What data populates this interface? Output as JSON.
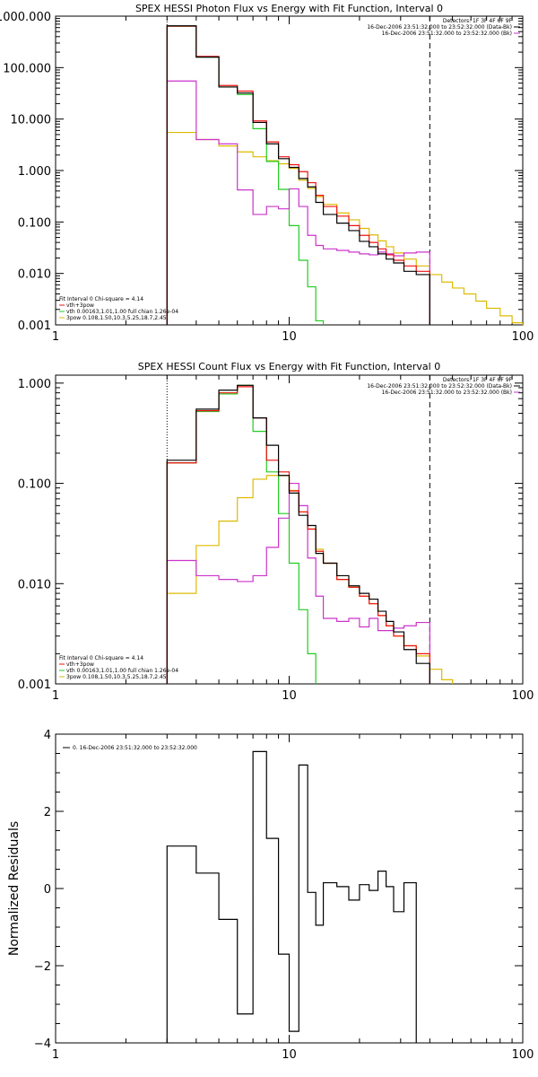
{
  "chart_data": [
    {
      "type": "line",
      "title": "SPEX HESSI Photon Flux vs Energy with Fit Function, Interval 0",
      "xscale": "log",
      "yscale": "log",
      "xlim": [
        1,
        100
      ],
      "ylim": [
        0.001,
        1000
      ],
      "x_ticks": [
        1,
        10,
        100
      ],
      "x_tick_labels": [
        "1",
        "10",
        "100"
      ],
      "y_ticks": [
        0.001,
        0.01,
        0.1,
        1,
        10,
        100,
        1000
      ],
      "y_tick_labels": [
        "0.001",
        "0.010",
        "0.100",
        "1.000",
        "10.000",
        "100.000",
        "1000.000"
      ],
      "vlines": [
        {
          "x": 3,
          "style": "dotted"
        },
        {
          "x": 40,
          "style": "dashed"
        }
      ],
      "legend_top_right": [
        {
          "text": "Detectors: 1F 3F 4F 6F 9F",
          "color": null
        },
        {
          "text": "16-Dec-2006 23:51:32.000 to 23:52:32.000 (Data-Bk)",
          "color": "#000000"
        },
        {
          "text": "16-Dec-2006 23:51:32.000 to 23:52:32.000 (Bk)",
          "color": "#cc33cc"
        }
      ],
      "legend_bottom_left": [
        {
          "text": "Fit Interval 0   Chi-square = 4.14",
          "color": null
        },
        {
          "text": "vth+3pow",
          "color": "#ee1111"
        },
        {
          "text": "vth 0.00163,1.01,1.00  full chian 1.26e-04",
          "color": "#22cc22"
        },
        {
          "text": "3pow 0.108,1.50,10.3,5.25,18.7,2.45",
          "color": "#ddbb00"
        }
      ],
      "edges": [
        3.0,
        4.0,
        5.0,
        6.0,
        7.0,
        8.0,
        9.0,
        10.0,
        11.0,
        12.0,
        13.0,
        14.0,
        16.0,
        18.0,
        20.0,
        22.0,
        24.0,
        26.0,
        28.0,
        31.0,
        35.0,
        40.0,
        45.0,
        50.0,
        56.0,
        63.0,
        70.0,
        80.0,
        90.0,
        100.0
      ],
      "series": [
        {
          "name": "16-Dec-2006 23:51:32.000 to 23:52:32.000 (Data-Bk)",
          "color": "#000000",
          "values": [
            650,
            160,
            42,
            32,
            8.6,
            3.3,
            1.7,
            1.15,
            0.7,
            0.48,
            0.24,
            0.14,
            0.095,
            0.068,
            0.042,
            0.033,
            0.024,
            0.019,
            0.016,
            0.011,
            0.0095
          ]
        },
        {
          "name": "16-Dec-2006 23:51:32.000 to 23:52:32.000 (Bk)",
          "color": "#cc33cc",
          "values": [
            55,
            4.0,
            3.3,
            0.42,
            0.14,
            0.2,
            0.18,
            0.44,
            0.2,
            0.055,
            0.035,
            0.03,
            0.028,
            0.026,
            0.024,
            0.023,
            0.026,
            0.024,
            0.022,
            0.025,
            0.026
          ]
        },
        {
          "name": "vth+3pow",
          "color": "#ee1111",
          "values": [
            640,
            165,
            45,
            35,
            9.2,
            3.6,
            1.85,
            1.3,
            0.95,
            0.58,
            0.33,
            0.2,
            0.13,
            0.085,
            0.055,
            0.04,
            0.03,
            0.023,
            0.018,
            0.014,
            0.011
          ]
        },
        {
          "name": "vth",
          "color": "#22cc22",
          "values": [
            640,
            160,
            42,
            30,
            6.5,
            1.5,
            0.43,
            0.085,
            0.018,
            0.0055,
            0.0012
          ]
        },
        {
          "name": "3pow",
          "color": "#ddbb00",
          "values": [
            5.5,
            4.0,
            3.0,
            2.3,
            1.85,
            1.55,
            1.35,
            1.1,
            0.65,
            0.45,
            0.31,
            0.22,
            0.15,
            0.11,
            0.075,
            0.056,
            0.043,
            0.033,
            0.025,
            0.019,
            0.014,
            0.0095,
            0.0068,
            0.0052,
            0.004,
            0.0029,
            0.0021,
            0.0015,
            0.0011
          ]
        }
      ]
    },
    {
      "type": "line",
      "title": "SPEX HESSI Count Flux vs Energy with Fit Function, Interval 0",
      "xscale": "log",
      "yscale": "log",
      "xlim": [
        1,
        100
      ],
      "ylim": [
        0.001,
        1.2
      ],
      "x_ticks": [
        1,
        10,
        100
      ],
      "x_tick_labels": [
        "1",
        "10",
        "100"
      ],
      "y_ticks": [
        0.001,
        0.01,
        0.1,
        1
      ],
      "y_tick_labels": [
        "0.001",
        "0.010",
        "0.100",
        "1.000"
      ],
      "vlines": [
        {
          "x": 3,
          "style": "dotted"
        },
        {
          "x": 40,
          "style": "dashed"
        }
      ],
      "legend_top_right": [
        {
          "text": "Detectors: 1F 3F 4F 6F 9F",
          "color": null
        },
        {
          "text": "16-Dec-2006 23:51:32.000 to 23:52:32.000 (Data-Bk)",
          "color": "#000000"
        },
        {
          "text": "16-Dec-2006 23:51:32.000 to 23:52:32.000 (Bk)",
          "color": "#cc33cc"
        }
      ],
      "legend_bottom_left": [
        {
          "text": "Fit Interval 0   Chi-square = 4.14",
          "color": null
        },
        {
          "text": "vth+3pow",
          "color": "#ee1111"
        },
        {
          "text": "vth 0.00163,1.01,1.00  full chian 1.26e-04",
          "color": "#22cc22"
        },
        {
          "text": "3pow 0.108,1.50,10.3,5.25,18.7,2.45",
          "color": "#ddbb00"
        }
      ],
      "edges": [
        3.0,
        4.0,
        5.0,
        6.0,
        7.0,
        8.0,
        9.0,
        10.0,
        11.0,
        12.0,
        13.0,
        14.0,
        16.0,
        18.0,
        20.0,
        22.0,
        24.0,
        26.0,
        28.0,
        31.0,
        35.0,
        40.0,
        45.0,
        50.0
      ],
      "series": [
        {
          "name": "16-Dec-2006 23:51:32.000 to 23:52:32.000 (Data-Bk)",
          "color": "#000000",
          "values": [
            0.17,
            0.55,
            0.85,
            0.95,
            0.45,
            0.24,
            0.12,
            0.08,
            0.048,
            0.038,
            0.02,
            0.016,
            0.012,
            0.0095,
            0.008,
            0.007,
            0.0053,
            0.0042,
            0.0033,
            0.0022,
            0.0016
          ]
        },
        {
          "name": "16-Dec-2006 23:51:32.000 to 23:52:32.000 (Bk)",
          "color": "#cc33cc",
          "values": [
            0.017,
            0.012,
            0.011,
            0.0105,
            0.012,
            0.023,
            0.045,
            0.1,
            0.06,
            0.018,
            0.0075,
            0.0045,
            0.0042,
            0.0045,
            0.0037,
            0.0045,
            0.0034,
            0.0034,
            0.0036,
            0.0038,
            0.0041
          ]
        },
        {
          "name": "vth+3pow",
          "color": "#ee1111",
          "values": [
            0.16,
            0.53,
            0.8,
            0.92,
            0.45,
            0.17,
            0.13,
            0.084,
            0.052,
            0.035,
            0.021,
            0.016,
            0.011,
            0.0092,
            0.0075,
            0.0063,
            0.0048,
            0.0038,
            0.003,
            0.0024,
            0.002
          ]
        },
        {
          "name": "vth",
          "color": "#22cc22",
          "values": [
            0.16,
            0.52,
            0.78,
            0.95,
            0.33,
            0.13,
            0.05,
            0.016,
            0.0055,
            0.002,
            0.0007
          ]
        },
        {
          "name": "3pow",
          "color": "#ddbb00",
          "values": [
            0.008,
            0.024,
            0.042,
            0.072,
            0.11,
            0.12,
            0.12,
            0.085,
            0.052,
            0.035,
            0.022,
            0.016,
            0.011,
            0.0092,
            0.0075,
            0.0063,
            0.0048,
            0.0038,
            0.003,
            0.0024,
            0.0019,
            0.0014,
            0.0011
          ]
        }
      ]
    },
    {
      "type": "line",
      "xscale": "log",
      "xlim": [
        1,
        100
      ],
      "ylim": [
        -4,
        4
      ],
      "ylabel": "Normalized Residuals",
      "x_ticks": [
        1,
        10,
        100
      ],
      "x_tick_labels": [
        "1",
        "10",
        "100"
      ],
      "y_ticks": [
        -4,
        -2,
        0,
        2,
        4
      ],
      "y_tick_labels": [
        "−4",
        "−2",
        "0",
        "2",
        "4"
      ],
      "legend_top_left": [
        {
          "text": "0. 16-Dec-2006 23:51:32.000 to 23:52:32.000",
          "color": "#000000"
        }
      ],
      "edges": [
        3.0,
        4.0,
        5.0,
        6.0,
        7.0,
        8.0,
        9.0,
        10.0,
        11.0,
        12.0,
        13.0,
        14.0,
        16.0,
        18.0,
        20.0,
        22.0,
        24.0,
        26.0,
        28.0,
        31.0,
        35.0,
        40.0
      ],
      "series": [
        {
          "name": "0. 16-Dec-2006 23:51:32.000 to 23:52:32.000",
          "color": "#000000",
          "values": [
            1.1,
            0.4,
            -0.8,
            -3.25,
            3.55,
            1.3,
            -1.7,
            -3.7,
            3.2,
            -0.1,
            -0.95,
            0.15,
            0.05,
            -0.3,
            0.1,
            -0.05,
            0.45,
            0.05,
            -0.6,
            0.15
          ]
        }
      ]
    }
  ]
}
